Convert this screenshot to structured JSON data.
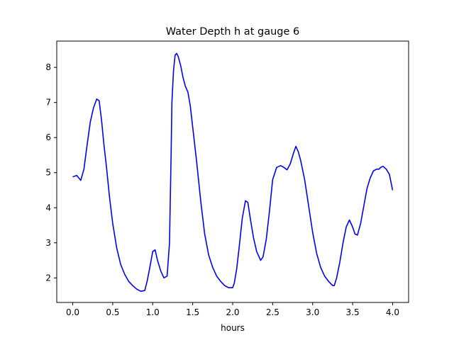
{
  "chart_data": {
    "type": "line",
    "title": "Water Depth h at gauge 6",
    "xlabel": "hours",
    "ylabel": "",
    "xlim": [
      -0.2,
      4.2
    ],
    "ylim": [
      1.3,
      8.75
    ],
    "xticks": [
      0.0,
      0.5,
      1.0,
      1.5,
      2.0,
      2.5,
      3.0,
      3.5,
      4.0
    ],
    "xtick_labels": [
      "0.0",
      "0.5",
      "1.0",
      "1.5",
      "2.0",
      "2.5",
      "3.0",
      "3.5",
      "4.0"
    ],
    "yticks": [
      2,
      3,
      4,
      5,
      6,
      7,
      8
    ],
    "ytick_labels": [
      "2",
      "3",
      "4",
      "5",
      "6",
      "7",
      "8"
    ],
    "grid": false,
    "line_color": "#0000ff",
    "series": [
      {
        "x": [
          0.0,
          0.05,
          0.1,
          0.14,
          0.18,
          0.22,
          0.26,
          0.3,
          0.33,
          0.36,
          0.39,
          0.42,
          0.46,
          0.5,
          0.55,
          0.6,
          0.65,
          0.7,
          0.75,
          0.8,
          0.85,
          0.9,
          0.93,
          0.96,
          1.0,
          1.03,
          1.06,
          1.1,
          1.14,
          1.18,
          1.21,
          1.23,
          1.24,
          1.26,
          1.28,
          1.3,
          1.32,
          1.35,
          1.38,
          1.41,
          1.44,
          1.47,
          1.5,
          1.55,
          1.6,
          1.65,
          1.7,
          1.75,
          1.8,
          1.85,
          1.9,
          1.95,
          2.0,
          2.02,
          2.05,
          2.08,
          2.12,
          2.16,
          2.19,
          2.22,
          2.26,
          2.3,
          2.35,
          2.38,
          2.42,
          2.46,
          2.5,
          2.55,
          2.6,
          2.64,
          2.68,
          2.72,
          2.76,
          2.79,
          2.82,
          2.85,
          2.9,
          2.95,
          3.0,
          3.05,
          3.1,
          3.15,
          3.2,
          3.25,
          3.27,
          3.3,
          3.34,
          3.38,
          3.42,
          3.46,
          3.5,
          3.53,
          3.56,
          3.6,
          3.64,
          3.68,
          3.72,
          3.76,
          3.8,
          3.83,
          3.85,
          3.88,
          3.92,
          3.96,
          4.0
        ],
        "y": [
          4.88,
          4.92,
          4.78,
          5.1,
          5.8,
          6.45,
          6.85,
          7.1,
          7.05,
          6.5,
          5.8,
          5.2,
          4.3,
          3.55,
          2.85,
          2.38,
          2.1,
          1.9,
          1.78,
          1.68,
          1.62,
          1.64,
          1.9,
          2.25,
          2.75,
          2.8,
          2.5,
          2.2,
          2.0,
          2.05,
          3.0,
          5.5,
          7.0,
          7.9,
          8.35,
          8.4,
          8.3,
          8.05,
          7.7,
          7.45,
          7.3,
          6.9,
          6.3,
          5.3,
          4.2,
          3.25,
          2.65,
          2.3,
          2.05,
          1.9,
          1.78,
          1.72,
          1.72,
          1.85,
          2.25,
          2.85,
          3.7,
          4.2,
          4.15,
          3.7,
          3.15,
          2.75,
          2.5,
          2.6,
          3.1,
          3.9,
          4.8,
          5.15,
          5.2,
          5.15,
          5.08,
          5.25,
          5.55,
          5.75,
          5.6,
          5.35,
          4.8,
          4.05,
          3.3,
          2.7,
          2.3,
          2.05,
          1.9,
          1.78,
          1.78,
          2.0,
          2.45,
          3.0,
          3.45,
          3.65,
          3.45,
          3.25,
          3.22,
          3.55,
          4.05,
          4.55,
          4.85,
          5.05,
          5.1,
          5.1,
          5.15,
          5.18,
          5.1,
          4.95,
          4.5
        ]
      }
    ]
  }
}
